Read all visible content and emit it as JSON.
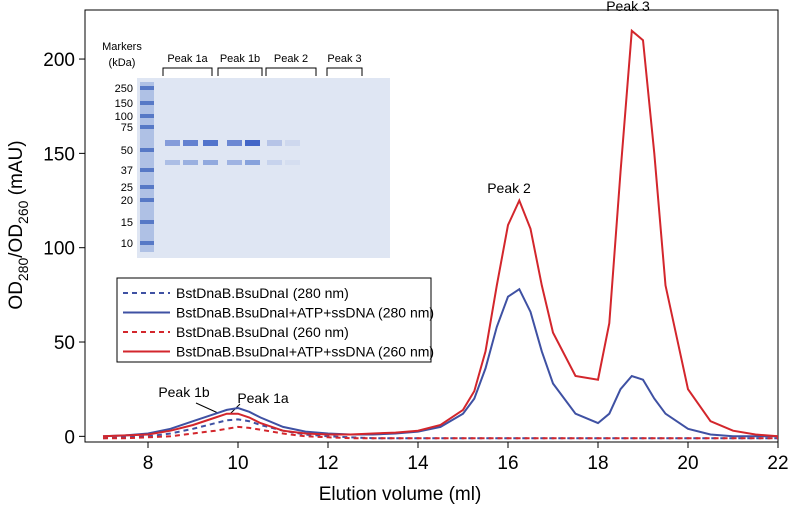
{
  "chart_data": {
    "type": "line",
    "xlabel": "Elution volume (ml)",
    "ylabel_parts": [
      "OD",
      "280",
      "/OD",
      "260",
      " (mAU)"
    ],
    "xlim": [
      6.6,
      22
    ],
    "ylim": [
      -3,
      226
    ],
    "xticks": [
      8,
      10,
      12,
      14,
      16,
      18,
      20,
      22
    ],
    "yticks": [
      0,
      50,
      100,
      150,
      200
    ],
    "grid": false,
    "x": [
      7,
      7.5,
      8,
      8.5,
      9,
      9.5,
      9.75,
      10,
      10.25,
      10.5,
      11,
      11.5,
      12,
      12.5,
      13,
      13.5,
      14,
      14.5,
      15,
      15.25,
      15.5,
      15.75,
      16,
      16.25,
      16.5,
      16.75,
      17,
      17.5,
      18,
      18.25,
      18.5,
      18.75,
      19,
      19.25,
      19.5,
      20,
      20.5,
      21,
      21.5,
      22
    ],
    "series": [
      {
        "name": "BstDnaB.BsuDnaI (280 nm)",
        "color": "#3f51a3",
        "dash": true,
        "values": [
          -1,
          -0.5,
          0,
          1.5,
          4,
          7,
          8.5,
          9,
          8,
          6,
          3,
          1,
          0,
          -0.5,
          -1,
          -1,
          -1,
          -1,
          -1,
          -1,
          -1,
          -1,
          -1,
          -1,
          -1,
          -1,
          -1,
          -1,
          -1,
          -1,
          -1,
          -1,
          -1,
          -1,
          -1,
          -1,
          -1,
          -1,
          -1,
          -1
        ]
      },
      {
        "name": "BstDnaB.BsuDnaI+ATP+ssDNA (280 nm)",
        "color": "#3f51a3",
        "dash": false,
        "values": [
          0,
          0.5,
          1.5,
          4,
          8,
          12,
          14,
          15,
          13,
          10,
          5,
          2.5,
          1.5,
          1,
          1,
          1.5,
          2.5,
          5,
          12,
          20,
          36,
          58,
          74,
          78,
          66,
          45,
          28,
          12,
          7,
          12,
          25,
          32,
          30,
          20,
          12,
          4,
          1,
          0,
          0,
          0
        ]
      },
      {
        "name": "BstDnaB.BsuDnaI (260 nm)",
        "color": "#d3262c",
        "dash": true,
        "values": [
          -1,
          -1,
          -0.5,
          0,
          1.5,
          3,
          4,
          5,
          4.5,
          3.5,
          1.5,
          0,
          -0.5,
          -1,
          -1,
          -1,
          -1,
          -1,
          -1,
          -1,
          -1,
          -1,
          -1,
          -1,
          -1,
          -1,
          -1,
          -1,
          -1,
          -1,
          -1,
          -1,
          -1,
          -1,
          -1,
          -1,
          -1,
          -1,
          -1,
          -1
        ]
      },
      {
        "name": "BstDnaB.BsuDnaI+ATP+ssDNA (260 nm)",
        "color": "#d3262c",
        "dash": false,
        "values": [
          0,
          0.5,
          1,
          3,
          6,
          10,
          12,
          12,
          10,
          7,
          3,
          1.5,
          1,
          1,
          1.5,
          2,
          3,
          6,
          14,
          24,
          45,
          80,
          112,
          125,
          110,
          80,
          55,
          32,
          30,
          60,
          140,
          215,
          210,
          150,
          80,
          25,
          8,
          3,
          1,
          0
        ]
      }
    ],
    "annotations": [
      "Peak 1b",
      "Peak 1a",
      "Peak 2",
      "Peak 3"
    ],
    "inset": {
      "markers_title": "Markers",
      "markers_unit": "(kDa)",
      "marker_sizes": [
        "250",
        "150",
        "100",
        "75",
        "50",
        "37",
        "25",
        "20",
        "15",
        "10"
      ],
      "lane_groups": [
        "Peak 1a",
        "Peak 1b",
        "Peak 2",
        "Peak 3"
      ]
    }
  }
}
